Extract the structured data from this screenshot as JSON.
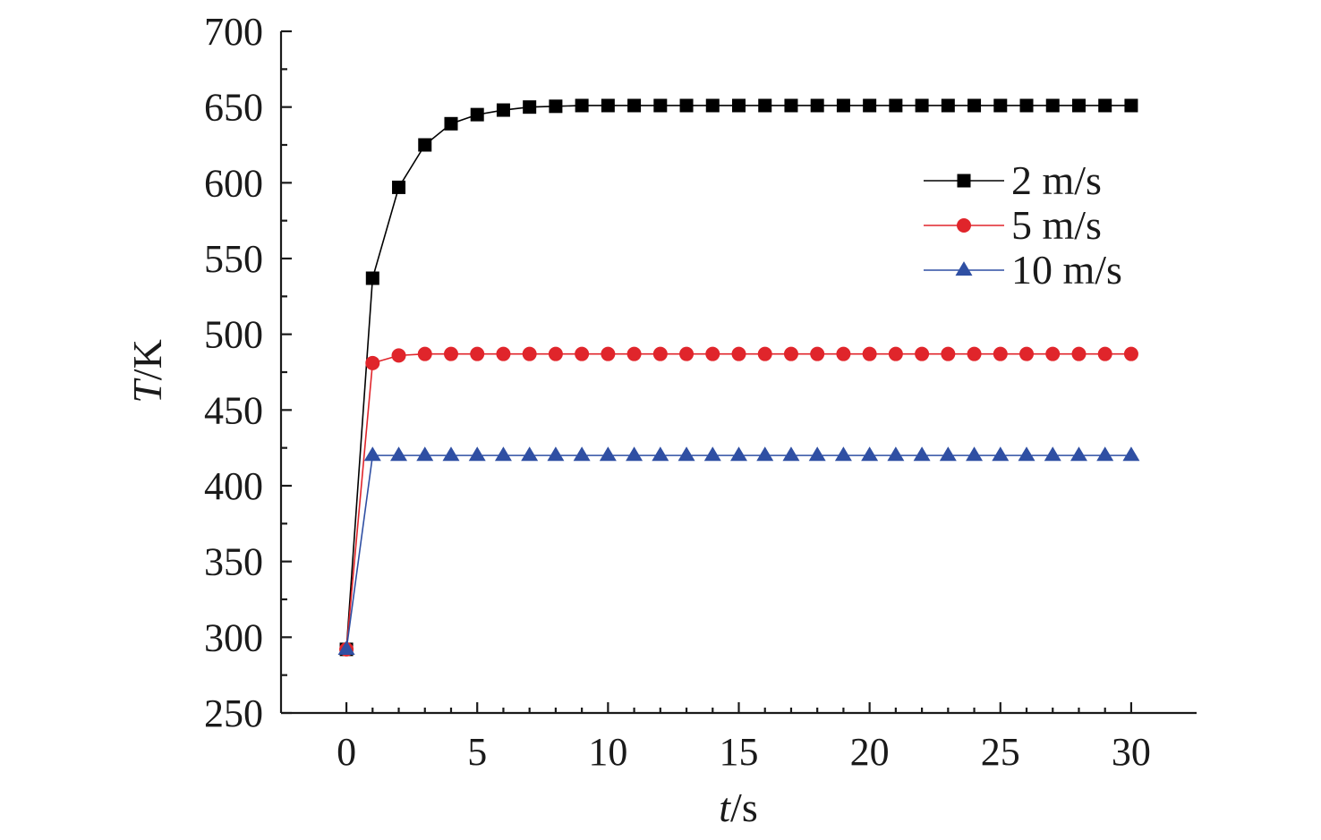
{
  "chart_data": {
    "type": "line",
    "title": "",
    "xlabel_italic": "t",
    "xlabel_unit": "/s",
    "ylabel_italic": "T",
    "ylabel_unit": "/K",
    "xlim": [
      -2.5,
      32.5
    ],
    "ylim": [
      250,
      700
    ],
    "xticks": [
      0,
      5,
      10,
      15,
      20,
      25,
      30
    ],
    "yticks": [
      250,
      300,
      350,
      400,
      450,
      500,
      550,
      600,
      650,
      700
    ],
    "grid": false,
    "legend_position": "top-right",
    "x": [
      0,
      1,
      2,
      3,
      4,
      5,
      6,
      7,
      8,
      9,
      10,
      11,
      12,
      13,
      14,
      15,
      16,
      17,
      18,
      19,
      20,
      21,
      22,
      23,
      24,
      25,
      26,
      27,
      28,
      29,
      30
    ],
    "series": [
      {
        "name": "2 m/s",
        "color": "#000000",
        "marker": "square",
        "values": [
          292,
          537,
          597,
          625,
          639,
          645,
          648,
          650,
          650.5,
          651,
          651,
          651,
          651,
          651,
          651,
          651,
          651,
          651,
          651,
          651,
          651,
          651,
          651,
          651,
          651,
          651,
          651,
          651,
          651,
          651,
          651
        ]
      },
      {
        "name": "5 m/s",
        "color": "#e0252b",
        "marker": "circle",
        "values": [
          292,
          481,
          486,
          487,
          487,
          487,
          487,
          487,
          487,
          487,
          487,
          487,
          487,
          487,
          487,
          487,
          487,
          487,
          487,
          487,
          487,
          487,
          487,
          487,
          487,
          487,
          487,
          487,
          487,
          487,
          487
        ]
      },
      {
        "name": "10 m/s",
        "color": "#2f4fa3",
        "marker": "triangle",
        "values": [
          292,
          420,
          420,
          420,
          420,
          420,
          420,
          420,
          420,
          420,
          420,
          420,
          420,
          420,
          420,
          420,
          420,
          420,
          420,
          420,
          420,
          420,
          420,
          420,
          420,
          420,
          420,
          420,
          420,
          420,
          420
        ]
      }
    ]
  }
}
